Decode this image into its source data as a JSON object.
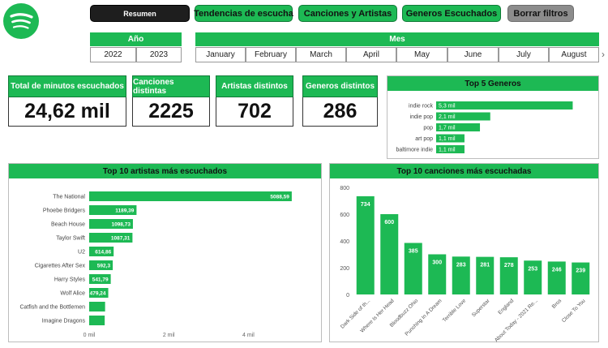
{
  "nav": {
    "resumen": "Resumen",
    "tendencias": "Tendencias de escucha",
    "canciones_artistas": "Canciones y Artistas",
    "generos": "Generos Escuchados",
    "borrar": "Borrar filtros"
  },
  "year_slicer": {
    "title": "Año",
    "options": [
      "2022",
      "2023"
    ]
  },
  "month_slicer": {
    "title": "Mes",
    "options": [
      "January",
      "February",
      "March",
      "April",
      "May",
      "June",
      "July",
      "August"
    ]
  },
  "kpis": {
    "minutes": {
      "label": "Total de minutos escuchados",
      "value": "24,62 mil"
    },
    "songs": {
      "label": "Canciones distintas",
      "value": "2225"
    },
    "artists": {
      "label": "Artistas distintos",
      "value": "702"
    },
    "genres": {
      "label": "Generos distintos",
      "value": "286"
    }
  },
  "colors": {
    "accent": "#1db954",
    "dark": "#1e1e1e",
    "grey": "#8c8c8c"
  },
  "icons": {
    "logo": "spotify-logo-icon",
    "scroll": "chevron-right-icon"
  },
  "chart_data": [
    {
      "type": "bar",
      "orientation": "horizontal",
      "title": "Top 5 Generos",
      "categories": [
        "indie rock",
        "indie pop",
        "pop",
        "art pop",
        "baltimore indie"
      ],
      "values": [
        5300,
        2100,
        1700,
        1100,
        1100
      ],
      "labels": [
        "5,3 mil",
        "2,1 mil",
        "1,7 mil",
        "1,1 mil",
        "1,1 mil"
      ],
      "xlim": [
        0,
        5600
      ],
      "grid": false
    },
    {
      "type": "bar",
      "orientation": "horizontal",
      "title": "Top 10 artistas más escuchados",
      "categories": [
        "The National",
        "Phoebe Bridgers",
        "Beach House",
        "Taylor Swift",
        "U2",
        "Cigarettes After Sex",
        "Harry Styles",
        "Wolf Alice",
        "Catfish and the Bottlemen",
        "Imagine Dragons"
      ],
      "values": [
        5088.59,
        1189.39,
        1098.73,
        1087.31,
        614.86,
        592.3,
        541.79,
        479.24,
        400,
        390
      ],
      "labels": [
        "5088,59",
        "1189,39",
        "1098,73",
        "1087,31",
        "614,86",
        "592,3",
        "541,79",
        "479,24",
        "",
        ""
      ],
      "xticks": [
        "0 mil",
        "2 mil",
        "4 mil"
      ],
      "xlim": [
        0,
        5600
      ],
      "grid": false
    },
    {
      "type": "bar",
      "title": "Top 10 canciones más escuchadas",
      "categories": [
        "Dark Side of th...",
        "Where Is Her Head",
        "Bloodbuzz Ohio",
        "Punching In A Dream",
        "Terrible Love",
        "Superstar",
        "England",
        "About Today - 2021 Re...",
        "Bros",
        "Close To You"
      ],
      "values": [
        734,
        600,
        385,
        300,
        283,
        281,
        278,
        253,
        246,
        239
      ],
      "yticks": [
        0,
        200,
        400,
        600,
        800
      ],
      "ylim": [
        0,
        800
      ],
      "grid": false
    }
  ]
}
